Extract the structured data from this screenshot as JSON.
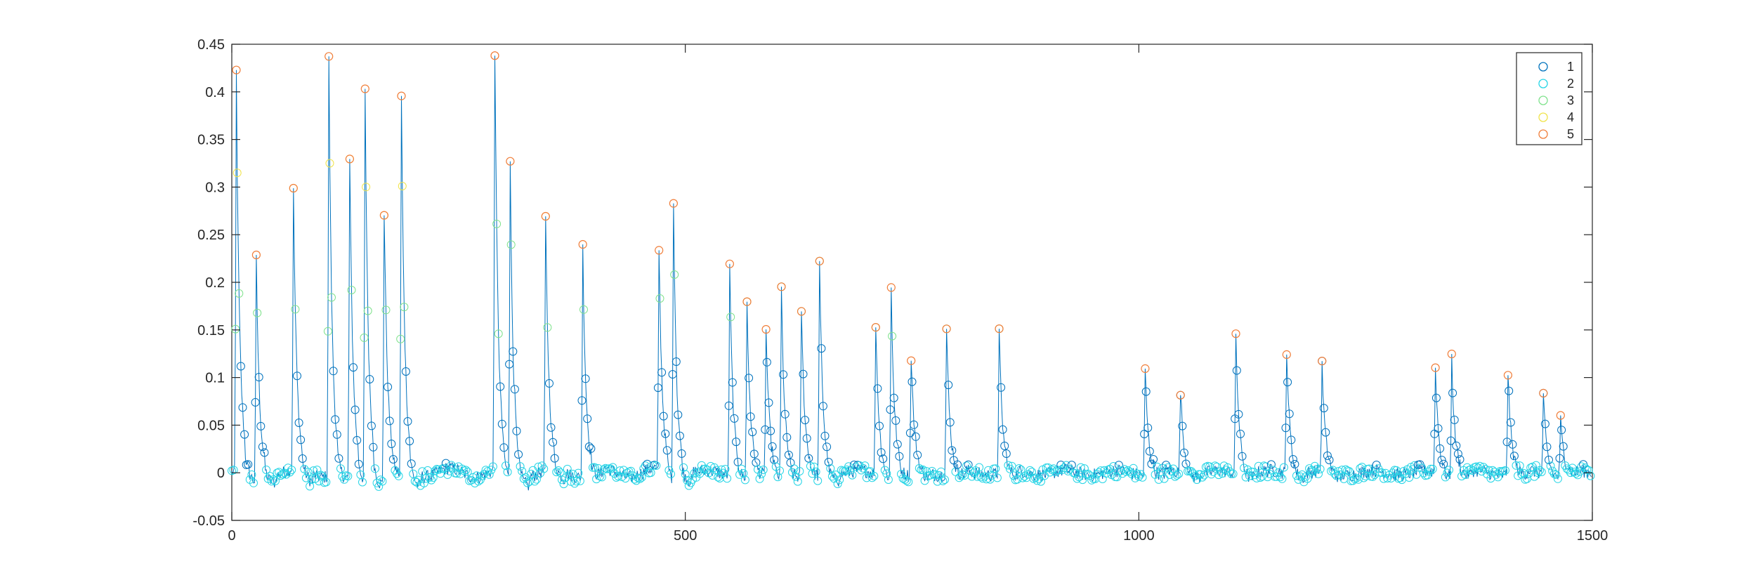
{
  "chart_data": {
    "type": "scatter",
    "title": "",
    "xlabel": "",
    "ylabel": "",
    "xlim": [
      0,
      1500
    ],
    "ylim": [
      -0.05,
      0.45
    ],
    "x_ticks": [
      0,
      500,
      1000,
      1500
    ],
    "y_ticks": [
      -0.05,
      0,
      0.05,
      0.1,
      0.15,
      0.2,
      0.25,
      0.3,
      0.35,
      0.4,
      0.45
    ],
    "x_tick_labels": [
      "0",
      "500",
      "1000",
      "1500"
    ],
    "y_tick_labels": [
      "-0.05",
      "0",
      "0.05",
      "0.1",
      "0.15",
      "0.2",
      "0.25",
      "0.3",
      "0.35",
      "0.4",
      "0.45"
    ],
    "grid": false,
    "legend_position": "top-right",
    "line_color": "#0072BD",
    "series": [
      {
        "name": "1",
        "color": "#0072BD"
      },
      {
        "name": "2",
        "color": "#26D5E6"
      },
      {
        "name": "3",
        "color": "#7FE28C"
      },
      {
        "name": "4",
        "color": "#F0E34A"
      },
      {
        "name": "5",
        "color": "#F07E3A"
      }
    ],
    "peaks": [
      [
        5,
        0.418
      ],
      [
        27,
        0.222
      ],
      [
        68,
        0.29
      ],
      [
        107,
        0.436
      ],
      [
        130,
        0.322
      ],
      [
        147,
        0.41
      ],
      [
        168,
        0.286
      ],
      [
        187,
        0.398
      ],
      [
        290,
        0.441
      ],
      [
        307,
        0.33
      ],
      [
        346,
        0.262
      ],
      [
        387,
        0.24
      ],
      [
        471,
        0.232
      ],
      [
        487,
        0.295
      ],
      [
        549,
        0.216
      ],
      [
        568,
        0.183
      ],
      [
        589,
        0.152
      ],
      [
        606,
        0.198
      ],
      [
        628,
        0.171
      ],
      [
        648,
        0.22
      ],
      [
        710,
        0.159
      ],
      [
        727,
        0.2
      ],
      [
        749,
        0.121
      ],
      [
        788,
        0.153
      ],
      [
        846,
        0.148
      ],
      [
        1007,
        0.11
      ],
      [
        1046,
        0.088
      ],
      [
        1107,
        0.146
      ],
      [
        1163,
        0.132
      ],
      [
        1202,
        0.109
      ],
      [
        1327,
        0.111
      ],
      [
        1345,
        0.125
      ],
      [
        1407,
        0.108
      ],
      [
        1446,
        0.08
      ],
      [
        1465,
        0.058
      ]
    ]
  }
}
